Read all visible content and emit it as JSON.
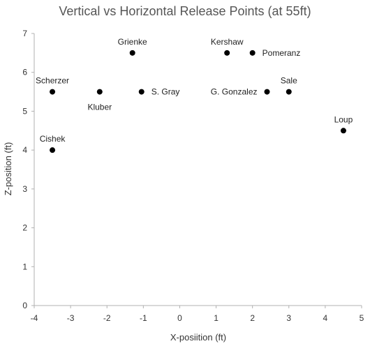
{
  "chart_data": {
    "type": "scatter",
    "title": "Vertical vs Horizontal Release Points (at 55ft)",
    "xlabel": "X-posiition (ft)",
    "ylabel": "Z-position (ft)",
    "xlim": [
      -4,
      5
    ],
    "ylim": [
      0,
      7
    ],
    "xticks": [
      -4,
      -3,
      -2,
      -1,
      0,
      1,
      2,
      3,
      4,
      5
    ],
    "yticks": [
      0,
      1,
      2,
      3,
      4,
      5,
      6,
      7
    ],
    "grid": false,
    "marker_color": "#000000",
    "points": [
      {
        "label": "Scherzer",
        "x": -3.5,
        "y": 5.5,
        "label_pos": "top"
      },
      {
        "label": "Kluber",
        "x": -2.2,
        "y": 5.5,
        "label_pos": "bottom"
      },
      {
        "label": "Cishek",
        "x": -3.5,
        "y": 4.0,
        "label_pos": "top"
      },
      {
        "label": "Grienke",
        "x": -1.3,
        "y": 6.5,
        "label_pos": "top"
      },
      {
        "label": "S. Gray",
        "x": -1.05,
        "y": 5.5,
        "label_pos": "right"
      },
      {
        "label": "Kershaw",
        "x": 1.3,
        "y": 6.5,
        "label_pos": "top"
      },
      {
        "label": "Pomeranz",
        "x": 2.0,
        "y": 6.5,
        "label_pos": "right"
      },
      {
        "label": "G. Gonzalez",
        "x": 2.4,
        "y": 5.5,
        "label_pos": "left"
      },
      {
        "label": "Sale",
        "x": 3.0,
        "y": 5.5,
        "label_pos": "top"
      },
      {
        "label": "Loup",
        "x": 4.5,
        "y": 4.5,
        "label_pos": "top"
      }
    ]
  }
}
